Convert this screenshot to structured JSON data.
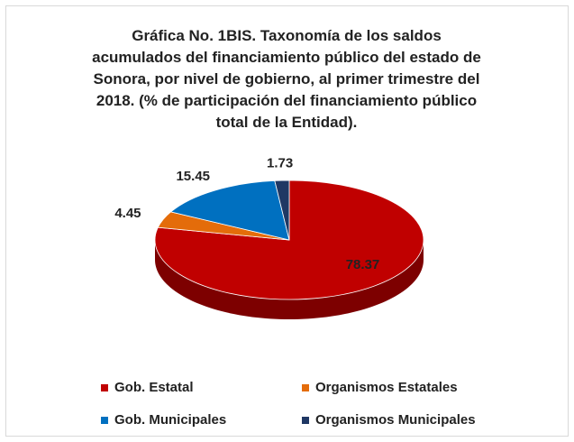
{
  "chart_data": {
    "type": "pie",
    "title": "Gráfica No. 1BIS. Taxonomía de los saldos acumulados del financiamiento público del estado de Sonora, por nivel de gobierno, al primer trimestre del 2018. (% de participación del financiamiento público total de la Entidad).",
    "categories": [
      "Gob. Estatal",
      "Organismos Estatales",
      "Gob. Municipales",
      "Organismos Municipales"
    ],
    "values": [
      78.37,
      4.45,
      15.45,
      1.73
    ],
    "colors": [
      "#c00000",
      "#e46c0a",
      "#0070c0",
      "#1f3864"
    ]
  }
}
